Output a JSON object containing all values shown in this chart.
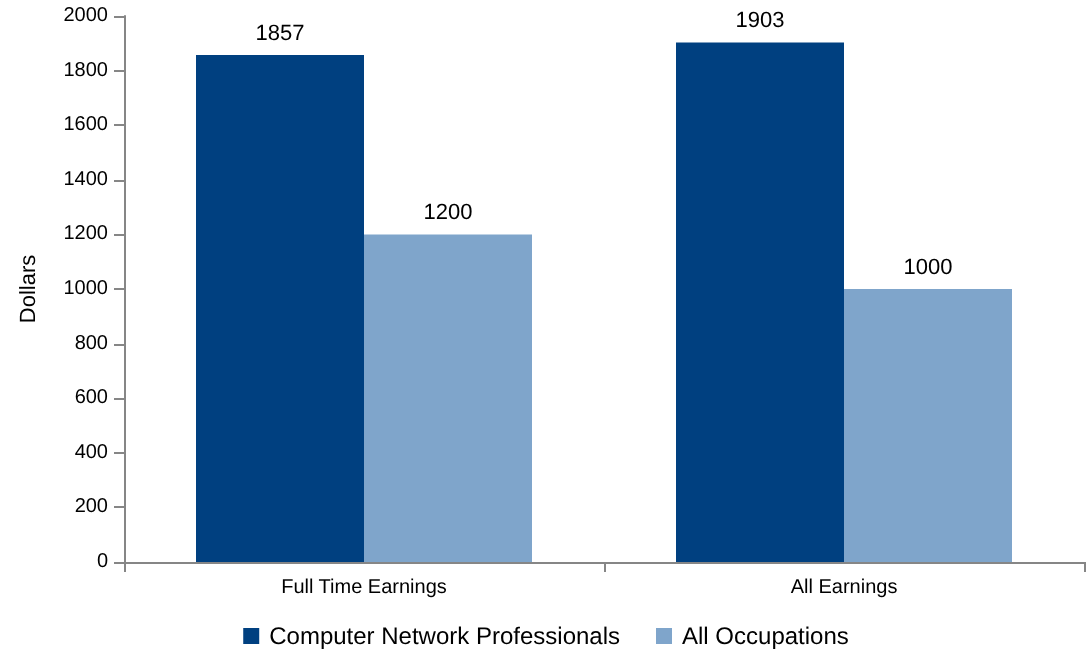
{
  "chart_data": {
    "type": "bar",
    "ylabel": "Dollars",
    "categories": [
      "Full Time Earnings",
      "All Earnings"
    ],
    "series": [
      {
        "name": "Computer Network Professionals",
        "color": "#004080",
        "values": [
          1857,
          1903
        ]
      },
      {
        "name": "All Occupations",
        "color": "#7fa5cb",
        "values": [
          1200,
          1000
        ]
      }
    ],
    "ylim": [
      0,
      2000
    ],
    "yticks": [
      0,
      200,
      400,
      600,
      800,
      1000,
      1200,
      1400,
      1600,
      1800,
      2000
    ],
    "grid": false,
    "legend": "bottom",
    "data_labels": true
  }
}
